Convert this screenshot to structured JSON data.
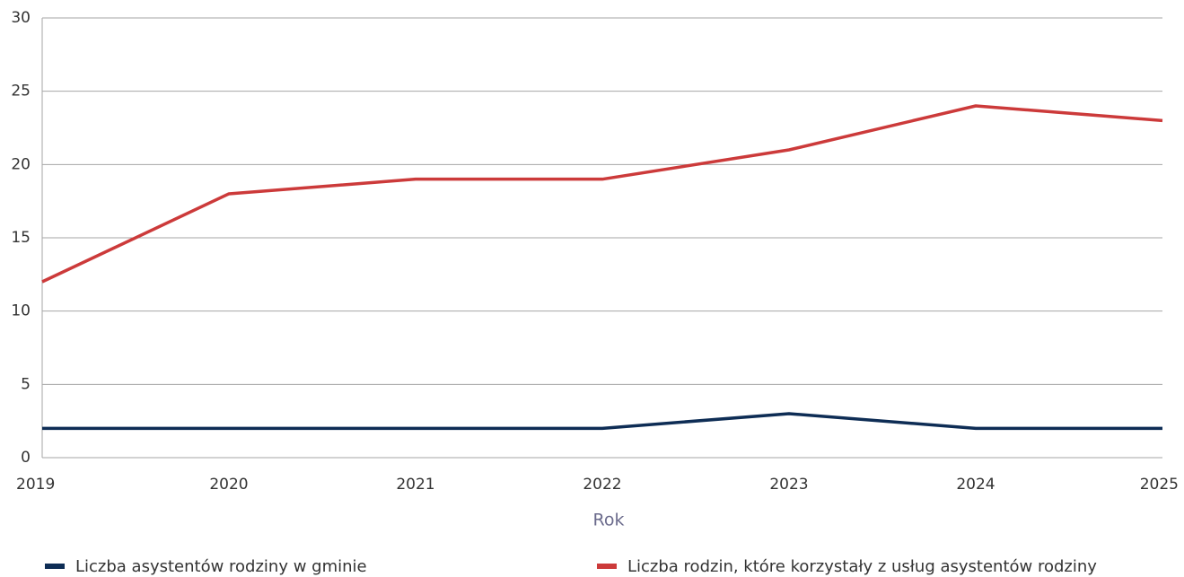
{
  "chart_data": {
    "type": "line",
    "x_label": "Rok",
    "x": [
      2019,
      2020,
      2021,
      2022,
      2023,
      2024,
      2025
    ],
    "xlim": [
      2019,
      2025
    ],
    "xticks": [
      2019,
      2020,
      2021,
      2022,
      2023,
      2024,
      2025
    ],
    "ylim": [
      0,
      30
    ],
    "yticks": [
      0,
      5,
      10,
      15,
      20,
      25,
      30
    ],
    "grid": true,
    "legend": "bottom",
    "series": [
      {
        "name": "Liczba asystentów rodziny w gminie",
        "color": "#0e2d55",
        "values": [
          2,
          2,
          2,
          2,
          3,
          2,
          2
        ]
      },
      {
        "name": "Liczba rodzin, które korzystały z usług asystentów rodziny",
        "color": "#cc3a3a",
        "values": [
          12,
          18,
          19,
          19,
          21,
          24,
          23
        ]
      }
    ]
  }
}
